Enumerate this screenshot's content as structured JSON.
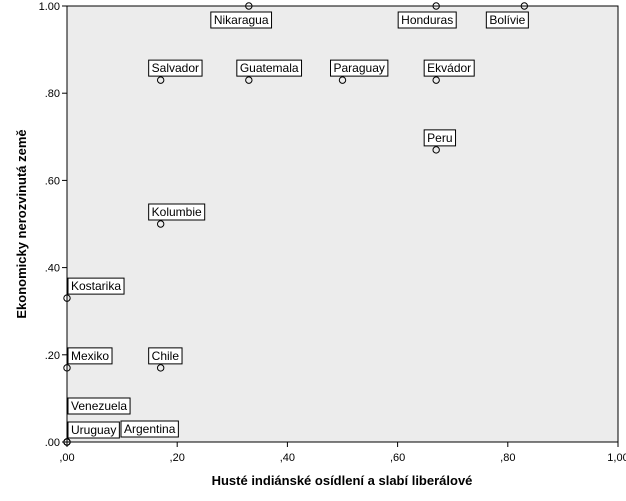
{
  "chart_data": {
    "type": "scatter",
    "xlabel": "Husté indiánské osídlení a slabí liberálové",
    "ylabel": "Ekonomicky nerozvinutá země",
    "xlim": [
      0,
      1
    ],
    "ylim": [
      0,
      1
    ],
    "x_ticks": [
      ",00",
      ",20",
      ",40",
      ",60",
      ",80",
      "1,00"
    ],
    "y_ticks": [
      ".00",
      ".20",
      ".40",
      ".60",
      ".80",
      "1.00"
    ],
    "x_tick_values": [
      0,
      0.2,
      0.4,
      0.6,
      0.8,
      1.0
    ],
    "y_tick_values": [
      0,
      0.2,
      0.4,
      0.6,
      0.8,
      1.0
    ],
    "grid": false,
    "plot_background": "#ececec",
    "points": [
      {
        "label": "Nikaragua",
        "x": 0.33,
        "y": 1.0,
        "label_pos": "below"
      },
      {
        "label": "Honduras",
        "x": 0.67,
        "y": 1.0,
        "label_pos": "below"
      },
      {
        "label": "Bolívie",
        "x": 0.83,
        "y": 1.0,
        "label_pos": "below"
      },
      {
        "label": "Salvador",
        "x": 0.17,
        "y": 0.83,
        "label_pos": "above"
      },
      {
        "label": "Guatemala",
        "x": 0.33,
        "y": 0.83,
        "label_pos": "above"
      },
      {
        "label": "Paraguay",
        "x": 0.5,
        "y": 0.83,
        "label_pos": "above"
      },
      {
        "label": "Ekvádor",
        "x": 0.67,
        "y": 0.83,
        "label_pos": "above"
      },
      {
        "label": "Peru",
        "x": 0.67,
        "y": 0.67,
        "label_pos": "above"
      },
      {
        "label": "Kolumbie",
        "x": 0.17,
        "y": 0.5,
        "label_pos": "above"
      },
      {
        "label": "Kostarika",
        "x": 0.0,
        "y": 0.33,
        "label_pos": "above"
      },
      {
        "label": "Mexiko",
        "x": 0.0,
        "y": 0.17,
        "label_pos": "above"
      },
      {
        "label": "Chile",
        "x": 0.17,
        "y": 0.17,
        "label_pos": "above"
      },
      {
        "label": "Venezuela",
        "x": 0.0,
        "y": 0.0,
        "label_pos": "above-far"
      },
      {
        "label": "Uruguay",
        "x": 0.0,
        "y": 0.0,
        "label_pos": "above"
      },
      {
        "label": "Argentina",
        "x": 0.0,
        "y": 0.0,
        "label_pos": "right"
      }
    ]
  }
}
